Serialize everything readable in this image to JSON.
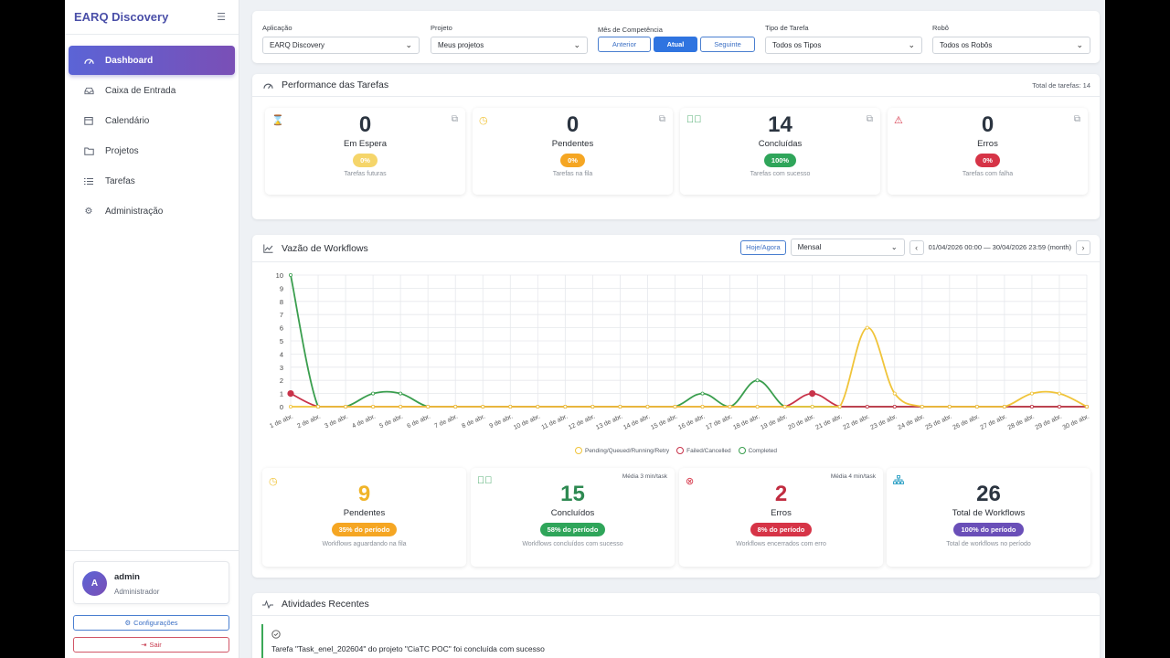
{
  "sidebar": {
    "brand": "EARQ Discovery",
    "items": [
      {
        "label": "Dashboard",
        "icon": "gauge-icon",
        "active": true
      },
      {
        "label": "Caixa de Entrada",
        "icon": "inbox-icon"
      },
      {
        "label": "Calendário",
        "icon": "calendar-icon"
      },
      {
        "label": "Projetos",
        "icon": "folder-icon"
      },
      {
        "label": "Tarefas",
        "icon": "list-icon"
      },
      {
        "label": "Administração",
        "icon": "gear-icon"
      }
    ],
    "user": {
      "initial": "A",
      "name": "admin",
      "role": "Administrador"
    },
    "config_label": "Configurações",
    "logout_label": "Sair"
  },
  "filters": {
    "app_label": "Aplicação",
    "app_value": "EARQ Discovery",
    "project_label": "Projeto",
    "project_value": "Meus projetos",
    "month_label": "Mês de Competência",
    "month_buttons": [
      "Anterior",
      "Atual",
      "Seguinte"
    ],
    "task_type_label": "Tipo de Tarefa",
    "task_type_value": "Todos os Tipos",
    "robot_label": "Robô",
    "robot_value": "Todos os Robôs"
  },
  "performance": {
    "title": "Performance das Tarefas",
    "total": "Total de tarefas: 14",
    "cards": [
      {
        "value": "0",
        "label": "Em Espera",
        "pill": "0%",
        "sub": "Tarefas futuras",
        "color": "#f0c43a",
        "icon": "hourglass-icon"
      },
      {
        "value": "0",
        "label": "Pendentes",
        "pill": "0%",
        "sub": "Tarefas na fila",
        "color": "#f0a520",
        "icon": "clock-icon"
      },
      {
        "value": "14",
        "label": "Concluídas",
        "pill": "100%",
        "sub": "Tarefas com sucesso",
        "color": "#2e9d55",
        "icon": "check-circle-icon"
      },
      {
        "value": "0",
        "label": "Erros",
        "pill": "0%",
        "sub": "Tarefas com falha",
        "color": "#d63447",
        "icon": "warning-icon"
      }
    ]
  },
  "workflows": {
    "title": "Vazão de Workflows",
    "today_label": "Hoje/Agora",
    "period_value": "Mensal",
    "date_range": "01/04/2026 00:00 — 30/04/2026 23:59 (month)",
    "legend": [
      "Pending/Queued/Running/Retry",
      "Failed/Cancelled",
      "Completed"
    ],
    "cards": [
      {
        "value": "9",
        "label": "Pendentes",
        "pill": "35% do período",
        "sub": "Workflows aguardando na fila",
        "note": "",
        "color": "#f0a520",
        "num_color": "#f0b429",
        "icon": "clock-icon"
      },
      {
        "value": "15",
        "label": "Concluídos",
        "pill": "58% do período",
        "sub": "Workflows concluídos com sucesso",
        "note": "Média 3 min/task",
        "color": "#2e9d55",
        "num_color": "#2e8a52",
        "icon": "check-circle-icon"
      },
      {
        "value": "2",
        "label": "Erros",
        "pill": "8% do período",
        "sub": "Workflows encerrados com erro",
        "note": "Média 4 min/task",
        "color": "#d63447",
        "num_color": "#c12c40",
        "icon": "x-circle-icon"
      },
      {
        "value": "26",
        "label": "Total de Workflows",
        "pill": "100% do período",
        "sub": "Total de workflows no período",
        "note": "",
        "color": "#6a4fb8",
        "num_color": "#2b3440",
        "icon": "sitemap-icon"
      }
    ]
  },
  "chart_data": {
    "type": "line",
    "categories": [
      "1 de abr.",
      "2 de abr.",
      "3 de abr.",
      "4 de abr.",
      "5 de abr.",
      "6 de abr.",
      "7 de abr.",
      "8 de abr.",
      "9 de abr.",
      "10 de abr.",
      "11 de abr.",
      "12 de abr.",
      "13 de abr.",
      "14 de abr.",
      "15 de abr.",
      "16 de abr.",
      "17 de abr.",
      "18 de abr.",
      "19 de abr.",
      "20 de abr.",
      "21 de abr.",
      "22 de abr.",
      "23 de abr.",
      "24 de abr.",
      "25 de abr.",
      "26 de abr.",
      "27 de abr.",
      "28 de abr.",
      "29 de abr.",
      "30 de abr."
    ],
    "ylim": [
      0,
      10
    ],
    "yticks": [
      0,
      1,
      2,
      3,
      4,
      5,
      6,
      7,
      8,
      9,
      10
    ],
    "series": [
      {
        "name": "Pending/Queued/Running/Retry",
        "color": "#f0c43a",
        "values": [
          0,
          0,
          0,
          0,
          0,
          0,
          0,
          0,
          0,
          0,
          0,
          0,
          0,
          0,
          0,
          0,
          0,
          0,
          0,
          0,
          0,
          6,
          1,
          0,
          0,
          0,
          0,
          1,
          1,
          0
        ]
      },
      {
        "name": "Failed/Cancelled",
        "color": "#c8334a",
        "values": [
          1,
          0,
          0,
          0,
          0,
          0,
          0,
          0,
          0,
          0,
          0,
          0,
          0,
          0,
          0,
          0,
          0,
          0,
          0,
          1,
          0,
          0,
          0,
          0,
          0,
          0,
          0,
          0,
          0,
          0
        ]
      },
      {
        "name": "Completed",
        "color": "#3a9e4e",
        "values": [
          10,
          0,
          0,
          1,
          1,
          0,
          0,
          0,
          0,
          0,
          0,
          0,
          0,
          0,
          0,
          1,
          0,
          2,
          0,
          0,
          0,
          0,
          0,
          0,
          0,
          0,
          0,
          0,
          0,
          0
        ]
      }
    ],
    "grid": true,
    "legend_position": "bottom"
  },
  "activity": {
    "title": "Atividades Recentes",
    "item_text": "Tarefa \"Task_enel_202604\" do projeto \"CiaTC POC\" foi concluída com sucesso"
  }
}
